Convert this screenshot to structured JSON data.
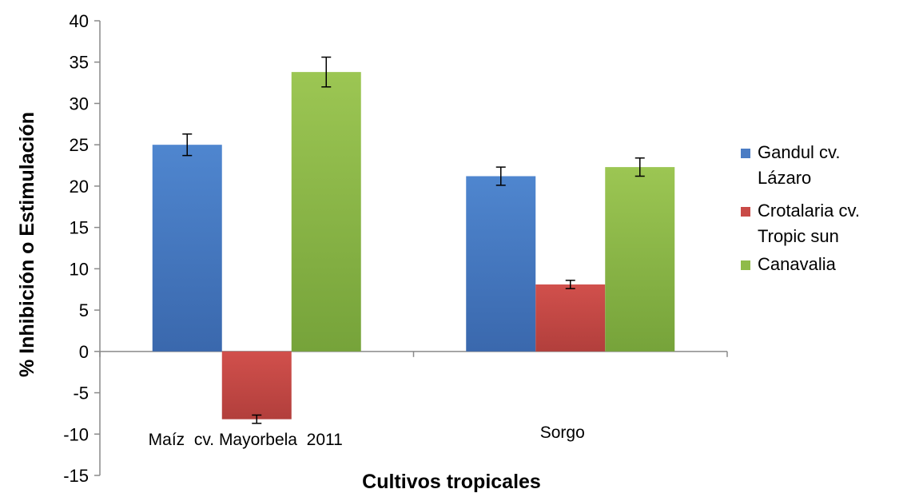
{
  "chart_data": {
    "type": "bar",
    "title": "",
    "xlabel": "Cultivos tropicales",
    "ylabel": "% Inhibición o Estimulación",
    "ylim": [
      -15,
      40
    ],
    "yticks": [
      40,
      35,
      30,
      25,
      20,
      15,
      10,
      5,
      0,
      -5,
      -10,
      -15
    ],
    "categories": [
      "Maíz  cv. Mayorbela  2011",
      "Sorgo"
    ],
    "series": [
      {
        "name": "Gandul cv. Lázaro",
        "legend_lines": [
          "Gandul cv.",
          "Lázaro"
        ],
        "color": "#4a7cc4",
        "values": [
          25.0,
          21.2
        ],
        "errors": [
          1.3,
          1.1
        ]
      },
      {
        "name": "Crotalaria cv. Tropic sun",
        "legend_lines": [
          "Crotalaria cv.",
          "Tropic sun"
        ],
        "color": "#c94a47",
        "values": [
          -8.2,
          8.1
        ],
        "errors": [
          0.5,
          0.5
        ]
      },
      {
        "name": "Canavalia",
        "legend_lines": [
          "Canavalia"
        ],
        "color": "#8fbb4a",
        "values": [
          33.8,
          22.3
        ],
        "errors": [
          1.8,
          1.1
        ]
      }
    ],
    "grid": false,
    "legend_position": "right"
  }
}
